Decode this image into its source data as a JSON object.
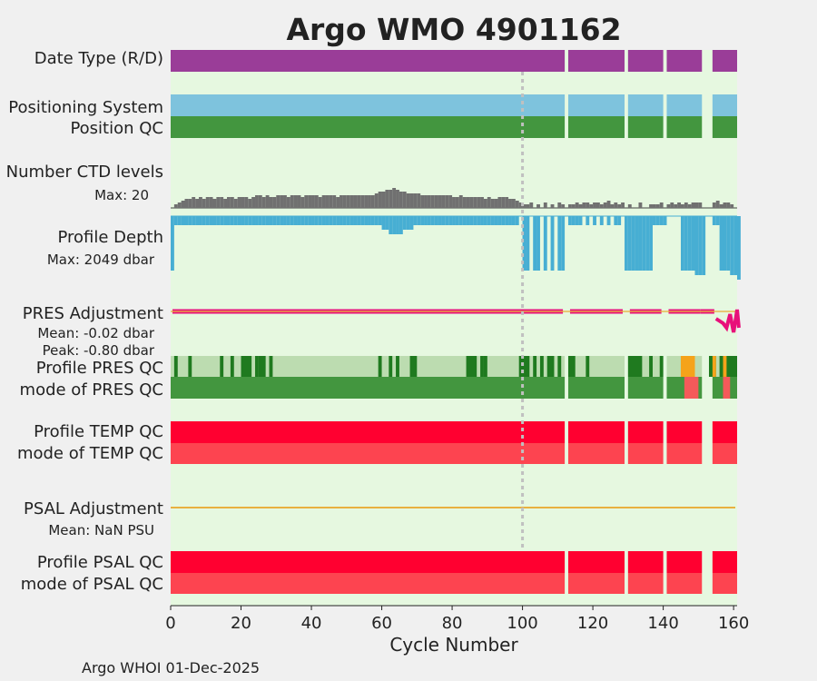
{
  "chart_data": {
    "type": "timeline",
    "title": "Argo WMO 4901162",
    "xlabel": "Cycle Number",
    "xlim": [
      0,
      161
    ],
    "xticks": [
      0,
      20,
      40,
      60,
      80,
      100,
      120,
      140,
      160
    ],
    "reference_line_cycle": 100,
    "footer": "Argo WHOI 01-Dec-2025",
    "colors": {
      "title": "#1a8fc1",
      "background": "#e6f8e0",
      "mode": "#9a3d98",
      "positioning": "#7ec3dd",
      "position_qc": "#43963f",
      "ctd": "#707070",
      "depth": "#47aed3",
      "pres_adj": "#e8107a",
      "pres_good": "#1f7a1f",
      "pres_light": "#bcdcb0",
      "pres_orange": "#f5a31a",
      "pres_red": "#f45a5a",
      "qc_red": "#ff0030",
      "qc_red_light": "#fd4450",
      "psal_line": "#e9b040",
      "psal_text": "#1a8fc1"
    },
    "rows": {
      "mode": "Date Type (R/D)",
      "positioning": "Positioning System",
      "position_qc": "Position QC",
      "ctd": "Number CTD levels",
      "ctd_max": "Max: 20",
      "depth": "Profile Depth",
      "depth_max": "Max: 2049 dbar",
      "pres_adj": "PRES Adjustment",
      "pres_mean": "Mean: -0.02 dbar",
      "pres_peak": "Peak: -0.80 dbar",
      "pres_profile_qc": "Profile PRES QC",
      "pres_mode_qc": "mode of PRES QC",
      "temp_profile_qc": "Profile TEMP QC",
      "temp_mode_qc": "mode of TEMP QC",
      "psal_adj": "PSAL Adjustment",
      "psal_mean": "Mean:  NaN PSU",
      "psal_profile_qc": "Profile PSAL QC",
      "psal_mode_qc": "mode of PSAL QC"
    },
    "cycle_segments": [
      [
        0,
        112
      ],
      [
        113,
        129
      ],
      [
        130,
        140
      ],
      [
        141,
        151
      ],
      [
        154,
        161
      ]
    ],
    "ctd_levels": [
      [
        1,
        2
      ],
      [
        2,
        3
      ],
      [
        3,
        4
      ],
      [
        4,
        5
      ],
      [
        5,
        5
      ],
      [
        6,
        6
      ],
      [
        7,
        5
      ],
      [
        8,
        6
      ],
      [
        9,
        5
      ],
      [
        10,
        6
      ],
      [
        11,
        6
      ],
      [
        12,
        5
      ],
      [
        13,
        6
      ],
      [
        14,
        6
      ],
      [
        15,
        5
      ],
      [
        16,
        6
      ],
      [
        17,
        6
      ],
      [
        18,
        5
      ],
      [
        19,
        6
      ],
      [
        20,
        6
      ],
      [
        21,
        6
      ],
      [
        22,
        5
      ],
      [
        23,
        6
      ],
      [
        24,
        7
      ],
      [
        25,
        7
      ],
      [
        26,
        6
      ],
      [
        27,
        7
      ],
      [
        28,
        6
      ],
      [
        29,
        6
      ],
      [
        30,
        7
      ],
      [
        31,
        7
      ],
      [
        32,
        7
      ],
      [
        33,
        6
      ],
      [
        34,
        7
      ],
      [
        35,
        7
      ],
      [
        36,
        7
      ],
      [
        37,
        6
      ],
      [
        38,
        7
      ],
      [
        39,
        7
      ],
      [
        40,
        7
      ],
      [
        41,
        7
      ],
      [
        42,
        6
      ],
      [
        43,
        7
      ],
      [
        44,
        7
      ],
      [
        45,
        7
      ],
      [
        46,
        7
      ],
      [
        47,
        6
      ],
      [
        48,
        7
      ],
      [
        49,
        7
      ],
      [
        50,
        7
      ],
      [
        51,
        7
      ],
      [
        52,
        7
      ],
      [
        53,
        7
      ],
      [
        54,
        7
      ],
      [
        55,
        7
      ],
      [
        56,
        7
      ],
      [
        57,
        7
      ],
      [
        58,
        8
      ],
      [
        59,
        9
      ],
      [
        60,
        9
      ],
      [
        61,
        10
      ],
      [
        62,
        10
      ],
      [
        63,
        11
      ],
      [
        64,
        10
      ],
      [
        65,
        9
      ],
      [
        66,
        9
      ],
      [
        67,
        8
      ],
      [
        68,
        8
      ],
      [
        69,
        8
      ],
      [
        70,
        8
      ],
      [
        71,
        7
      ],
      [
        72,
        7
      ],
      [
        73,
        7
      ],
      [
        74,
        7
      ],
      [
        75,
        7
      ],
      [
        76,
        7
      ],
      [
        77,
        7
      ],
      [
        78,
        7
      ],
      [
        79,
        7
      ],
      [
        80,
        6
      ],
      [
        81,
        6
      ],
      [
        82,
        7
      ],
      [
        83,
        6
      ],
      [
        84,
        6
      ],
      [
        85,
        6
      ],
      [
        86,
        6
      ],
      [
        87,
        6
      ],
      [
        88,
        6
      ],
      [
        89,
        5
      ],
      [
        90,
        6
      ],
      [
        91,
        5
      ],
      [
        92,
        5
      ],
      [
        93,
        6
      ],
      [
        94,
        6
      ],
      [
        95,
        6
      ],
      [
        96,
        5
      ],
      [
        97,
        5
      ],
      [
        98,
        4
      ],
      [
        99,
        3
      ],
      [
        100,
        2
      ],
      [
        101,
        2
      ],
      [
        102,
        3
      ],
      [
        104,
        2
      ],
      [
        106,
        3
      ],
      [
        108,
        2
      ],
      [
        110,
        3
      ],
      [
        111,
        2
      ],
      [
        113,
        2
      ],
      [
        114,
        2
      ],
      [
        115,
        3
      ],
      [
        116,
        2
      ],
      [
        117,
        3
      ],
      [
        118,
        3
      ],
      [
        119,
        2
      ],
      [
        120,
        3
      ],
      [
        121,
        3
      ],
      [
        122,
        2
      ],
      [
        123,
        3
      ],
      [
        124,
        4
      ],
      [
        125,
        2
      ],
      [
        126,
        3
      ],
      [
        127,
        2
      ],
      [
        128,
        3
      ],
      [
        130,
        2
      ],
      [
        133,
        3
      ],
      [
        136,
        2
      ],
      [
        137,
        2
      ],
      [
        138,
        2
      ],
      [
        139,
        3
      ],
      [
        141,
        2
      ],
      [
        142,
        3
      ],
      [
        143,
        2
      ],
      [
        144,
        3
      ],
      [
        145,
        2
      ],
      [
        146,
        3
      ],
      [
        147,
        2
      ],
      [
        148,
        3
      ],
      [
        149,
        3
      ],
      [
        150,
        3
      ],
      [
        154,
        3
      ],
      [
        155,
        4
      ],
      [
        156,
        2
      ],
      [
        157,
        3
      ],
      [
        158,
        3
      ],
      [
        159,
        2
      ]
    ],
    "profile_depth": [
      [
        0,
        12
      ],
      [
        1,
        2
      ],
      [
        2,
        2
      ],
      [
        3,
        2
      ],
      [
        4,
        2
      ],
      [
        5,
        2
      ],
      [
        6,
        2
      ],
      [
        7,
        2
      ],
      [
        8,
        2
      ],
      [
        9,
        2
      ],
      [
        10,
        2
      ],
      [
        11,
        2
      ],
      [
        12,
        2
      ],
      [
        13,
        2
      ],
      [
        14,
        2
      ],
      [
        15,
        2
      ],
      [
        16,
        2
      ],
      [
        17,
        2
      ],
      [
        18,
        2
      ],
      [
        19,
        2
      ],
      [
        20,
        2
      ],
      [
        21,
        2
      ],
      [
        22,
        2
      ],
      [
        23,
        2
      ],
      [
        24,
        2
      ],
      [
        25,
        2
      ],
      [
        26,
        2
      ],
      [
        27,
        2
      ],
      [
        28,
        2
      ],
      [
        29,
        2
      ],
      [
        30,
        2
      ],
      [
        31,
        2
      ],
      [
        32,
        2
      ],
      [
        33,
        2
      ],
      [
        34,
        2
      ],
      [
        35,
        2
      ],
      [
        36,
        2
      ],
      [
        37,
        2
      ],
      [
        38,
        2
      ],
      [
        39,
        2
      ],
      [
        40,
        2
      ],
      [
        41,
        2
      ],
      [
        42,
        2
      ],
      [
        43,
        2
      ],
      [
        44,
        2
      ],
      [
        45,
        2
      ],
      [
        46,
        2
      ],
      [
        47,
        2
      ],
      [
        48,
        2
      ],
      [
        49,
        2
      ],
      [
        50,
        2
      ],
      [
        51,
        2
      ],
      [
        52,
        2
      ],
      [
        53,
        2
      ],
      [
        54,
        2
      ],
      [
        55,
        2
      ],
      [
        56,
        2
      ],
      [
        57,
        2
      ],
      [
        58,
        2
      ],
      [
        59,
        2
      ],
      [
        60,
        3
      ],
      [
        61,
        3
      ],
      [
        62,
        4
      ],
      [
        63,
        4
      ],
      [
        64,
        4
      ],
      [
        65,
        4
      ],
      [
        66,
        3
      ],
      [
        67,
        3
      ],
      [
        68,
        3
      ],
      [
        69,
        2
      ],
      [
        70,
        2
      ],
      [
        71,
        2
      ],
      [
        72,
        2
      ],
      [
        73,
        2
      ],
      [
        74,
        2
      ],
      [
        75,
        2
      ],
      [
        76,
        2
      ],
      [
        77,
        2
      ],
      [
        78,
        2
      ],
      [
        79,
        2
      ],
      [
        80,
        2
      ],
      [
        81,
        2
      ],
      [
        82,
        2
      ],
      [
        83,
        2
      ],
      [
        84,
        2
      ],
      [
        85,
        2
      ],
      [
        86,
        2
      ],
      [
        87,
        2
      ],
      [
        88,
        2
      ],
      [
        89,
        2
      ],
      [
        90,
        2
      ],
      [
        91,
        2
      ],
      [
        92,
        2
      ],
      [
        93,
        2
      ],
      [
        94,
        2
      ],
      [
        95,
        2
      ],
      [
        96,
        2
      ],
      [
        97,
        2
      ],
      [
        98,
        2
      ],
      [
        100,
        12
      ],
      [
        101,
        12
      ],
      [
        103,
        12
      ],
      [
        104,
        12
      ],
      [
        106,
        12
      ],
      [
        108,
        12
      ],
      [
        110,
        12
      ],
      [
        111,
        12
      ],
      [
        113,
        2
      ],
      [
        114,
        2
      ],
      [
        115,
        2
      ],
      [
        116,
        2
      ],
      [
        118,
        2
      ],
      [
        120,
        2
      ],
      [
        122,
        2
      ],
      [
        124,
        2
      ],
      [
        126,
        2
      ],
      [
        127,
        2
      ],
      [
        129,
        12
      ],
      [
        130,
        12
      ],
      [
        131,
        12
      ],
      [
        132,
        12
      ],
      [
        133,
        12
      ],
      [
        134,
        12
      ],
      [
        135,
        12
      ],
      [
        136,
        12
      ],
      [
        137,
        2
      ],
      [
        138,
        2
      ],
      [
        139,
        2
      ],
      [
        140,
        2
      ],
      [
        145,
        12
      ],
      [
        146,
        12
      ],
      [
        147,
        12
      ],
      [
        148,
        12
      ],
      [
        149,
        13
      ],
      [
        150,
        13
      ],
      [
        151,
        13
      ],
      [
        154,
        2
      ],
      [
        155,
        2
      ],
      [
        156,
        12
      ],
      [
        157,
        12
      ],
      [
        158,
        12
      ],
      [
        159,
        13
      ],
      [
        160,
        13
      ],
      [
        161,
        14
      ]
    ],
    "pres_profile_qc_highlights": [
      [
        1,
        2
      ],
      [
        5,
        6
      ],
      [
        14,
        15
      ],
      [
        17,
        18
      ],
      [
        20,
        23
      ],
      [
        24,
        25
      ],
      [
        25,
        27
      ],
      [
        28,
        29
      ],
      [
        59,
        60
      ],
      [
        62,
        63
      ],
      [
        64,
        65
      ],
      [
        68,
        70
      ],
      [
        84,
        87
      ],
      [
        88,
        89
      ],
      [
        89,
        90
      ],
      [
        99,
        102
      ],
      [
        103,
        104
      ],
      [
        105,
        106
      ],
      [
        107,
        109
      ],
      [
        110,
        111
      ],
      [
        113,
        115
      ],
      [
        118,
        119
      ],
      [
        130,
        134
      ],
      [
        136,
        137
      ],
      [
        139,
        140
      ],
      [
        145,
        148
      ],
      [
        153,
        155
      ],
      [
        156,
        157
      ],
      [
        157,
        158
      ],
      [
        158,
        161
      ]
    ],
    "pres_profile_qc_orange": [
      [
        145,
        149
      ],
      [
        154,
        155
      ],
      [
        157,
        158
      ]
    ],
    "pres_mode_qc_red": [
      [
        146,
        150
      ],
      [
        157,
        159
      ]
    ],
    "pres_adjustment_wiggle": [
      [
        155,
        0
      ],
      [
        157,
        1
      ],
      [
        158,
        2
      ],
      [
        159,
        -1
      ],
      [
        160,
        3
      ],
      [
        161,
        -2
      ],
      [
        161.5,
        2
      ]
    ]
  }
}
